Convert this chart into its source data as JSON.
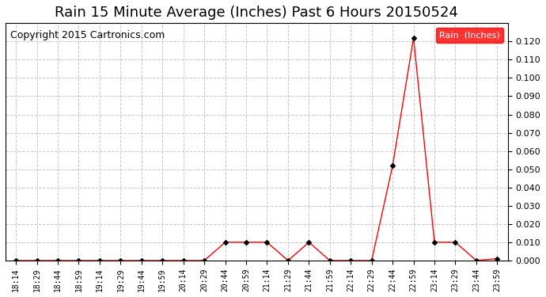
{
  "title": "Rain 15 Minute Average (Inches) Past 6 Hours 20150524",
  "copyright": "Copyright 2015 Cartronics.com",
  "legend_label": "Rain  (Inches)",
  "x_labels": [
    "18:14",
    "18:29",
    "18:44",
    "18:59",
    "19:14",
    "19:29",
    "19:44",
    "19:59",
    "20:14",
    "20:29",
    "20:44",
    "20:59",
    "21:14",
    "21:29",
    "21:44",
    "21:59",
    "22:14",
    "22:29",
    "22:44",
    "22:59",
    "23:14",
    "23:29",
    "23:44",
    "23:59"
  ],
  "y_values": [
    0.0,
    0.0,
    0.0,
    0.0,
    0.0,
    0.0,
    0.0,
    0.0,
    0.0,
    0.0,
    0.01,
    0.01,
    0.01,
    0.0,
    0.01,
    0.0,
    0.0,
    0.0,
    0.052,
    0.122,
    0.01,
    0.01,
    0.0,
    0.001
  ],
  "line_color": "#ff0000",
  "marker": "D",
  "marker_size": 3,
  "marker_color": "#000000",
  "ylim": [
    0.0,
    0.13
  ],
  "yticks": [
    0.0,
    0.01,
    0.02,
    0.03,
    0.04,
    0.05,
    0.06,
    0.07,
    0.08,
    0.09,
    0.1,
    0.11,
    0.12
  ],
  "background_color": "#ffffff",
  "grid_color": "#c8c8c8",
  "title_fontsize": 13,
  "copyright_fontsize": 9,
  "legend_bg_color": "#ff0000",
  "legend_text_color": "#ffffff"
}
